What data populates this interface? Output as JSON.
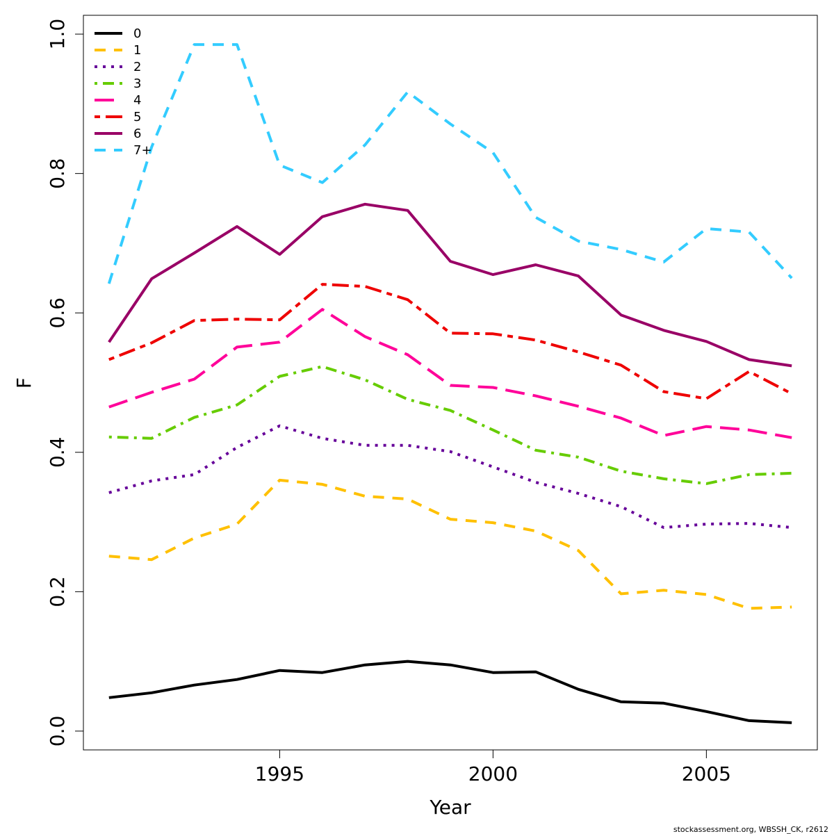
{
  "chart_data": {
    "type": "line",
    "title": "",
    "xlabel": "Year",
    "ylabel": "F",
    "xlim": [
      1990.4,
      2007.6
    ],
    "ylim": [
      -0.027,
      1.027
    ],
    "x_ticks": [
      1995,
      2000,
      2005
    ],
    "y_ticks": [
      0.0,
      0.2,
      0.4,
      0.6,
      0.8,
      1.0
    ],
    "x_tick_labels": [
      "1995",
      "2000",
      "2005"
    ],
    "y_tick_labels": [
      "0.0",
      "0.2",
      "0.4",
      "0.6",
      "0.8",
      "1.0"
    ],
    "grid": false,
    "legend_position": "top-left",
    "x": [
      1991,
      1992,
      1993,
      1994,
      1995,
      1996,
      1997,
      1998,
      1999,
      2000,
      2001,
      2002,
      2003,
      2004,
      2005,
      2006,
      2007
    ],
    "series": [
      {
        "name": "0",
        "color": "#000000",
        "dash": "solid",
        "values": [
          0.048,
          0.055,
          0.066,
          0.074,
          0.087,
          0.084,
          0.095,
          0.1,
          0.095,
          0.084,
          0.085,
          0.06,
          0.042,
          0.04,
          0.028,
          0.015,
          0.012
        ]
      },
      {
        "name": "1",
        "color": "#FFC000",
        "dash": "dashed",
        "values": [
          0.251,
          0.246,
          0.277,
          0.297,
          0.36,
          0.354,
          0.337,
          0.333,
          0.304,
          0.299,
          0.287,
          0.259,
          0.197,
          0.202,
          0.196,
          0.176,
          0.178
        ]
      },
      {
        "name": "2",
        "color": "#660099",
        "dash": "dotted",
        "values": [
          0.342,
          0.359,
          0.368,
          0.407,
          0.438,
          0.42,
          0.41,
          0.41,
          0.401,
          0.379,
          0.357,
          0.341,
          0.322,
          0.292,
          0.297,
          0.298,
          0.292
        ]
      },
      {
        "name": "3",
        "color": "#66CC00",
        "dash": "dotdash",
        "values": [
          0.422,
          0.42,
          0.45,
          0.468,
          0.509,
          0.523,
          0.504,
          0.476,
          0.46,
          0.432,
          0.403,
          0.393,
          0.373,
          0.362,
          0.355,
          0.368,
          0.37
        ]
      },
      {
        "name": "4",
        "color": "#FF0099",
        "dash": "longdash",
        "values": [
          0.465,
          0.486,
          0.505,
          0.551,
          0.558,
          0.605,
          0.566,
          0.54,
          0.496,
          0.493,
          0.481,
          0.466,
          0.449,
          0.424,
          0.437,
          0.432,
          0.421
        ]
      },
      {
        "name": "5",
        "color": "#EE0000",
        "dash": "twodash",
        "values": [
          0.533,
          0.557,
          0.589,
          0.591,
          0.59,
          0.641,
          0.638,
          0.619,
          0.571,
          0.57,
          0.561,
          0.544,
          0.525,
          0.487,
          0.477,
          0.516,
          0.484
        ]
      },
      {
        "name": "6",
        "color": "#990066",
        "dash": "solid",
        "values": [
          0.558,
          0.649,
          0.686,
          0.724,
          0.684,
          0.738,
          0.756,
          0.747,
          0.674,
          0.655,
          0.669,
          0.653,
          0.597,
          0.575,
          0.559,
          0.533,
          0.524
        ]
      },
      {
        "name": "7+",
        "color": "#33CCFF",
        "dash": "dashed",
        "values": [
          0.642,
          0.838,
          0.985,
          0.985,
          0.812,
          0.787,
          0.841,
          0.917,
          0.871,
          0.83,
          0.737,
          0.703,
          0.691,
          0.673,
          0.721,
          0.716,
          0.65
        ]
      }
    ]
  },
  "credit": "stockassessment.org, WBSSH_CK, r2612"
}
